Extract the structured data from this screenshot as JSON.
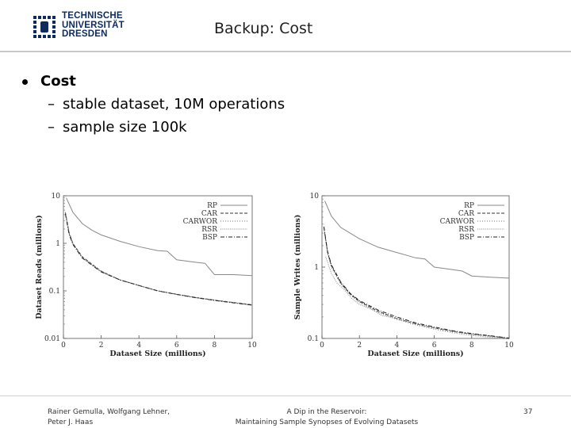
{
  "header": {
    "logo_lines": [
      "TECHNISCHE",
      "UNIVERSITÄT",
      "DRESDEN"
    ],
    "title": "Backup: Cost"
  },
  "content": {
    "bullet": "Cost",
    "subbullets": [
      "stable dataset, 10M operations",
      "sample size 100k"
    ]
  },
  "footer": {
    "authors_line1": "Rainer Gemulla, Wolfgang Lehner,",
    "authors_line2": "Peter J. Haas",
    "talk_line1": "A Dip in the Reservoir:",
    "talk_line2": "Maintaining Sample Synopses of Evolving Datasets",
    "page": "37"
  },
  "chart_data": [
    {
      "type": "line",
      "xlabel": "Dataset Size (millions)",
      "ylabel": "Dataset Reads (millions)",
      "xlim": [
        0,
        10
      ],
      "ylim": [
        0.01,
        10
      ],
      "log_y": true,
      "xticks": [
        "0",
        "2",
        "4",
        "6",
        "8",
        "10"
      ],
      "yticks": [
        "0.01",
        "0.1",
        "1",
        "10"
      ],
      "legend_position": "top-right",
      "series": [
        {
          "name": "RP",
          "style": "solid",
          "x": [
            0.15,
            0.5,
            1,
            1.5,
            2,
            3,
            4,
            5,
            5.5,
            6,
            7,
            7.5,
            8,
            9,
            10
          ],
          "y": [
            9,
            4.5,
            2.6,
            1.9,
            1.5,
            1.1,
            0.85,
            0.7,
            0.68,
            0.45,
            0.4,
            0.38,
            0.22,
            0.22,
            0.21
          ]
        },
        {
          "name": "CAR",
          "style": "dashed",
          "x": [
            0.1,
            0.3,
            0.5,
            1,
            2,
            3,
            4,
            5,
            6,
            7,
            8,
            9,
            10
          ],
          "y": [
            4.5,
            1.7,
            1.0,
            0.52,
            0.26,
            0.17,
            0.13,
            0.1,
            0.085,
            0.073,
            0.064,
            0.057,
            0.051
          ]
        },
        {
          "name": "CARWOR",
          "style": "dotted",
          "x": [
            0.1,
            0.3,
            0.5,
            1,
            2,
            3,
            4,
            5,
            6,
            7,
            8,
            9,
            10
          ],
          "y": [
            4.3,
            1.6,
            0.98,
            0.5,
            0.25,
            0.17,
            0.13,
            0.1,
            0.084,
            0.072,
            0.063,
            0.056,
            0.05
          ]
        },
        {
          "name": "RSR",
          "style": "densely-dotted",
          "x": [
            0.1,
            0.3,
            0.5,
            1,
            2,
            3,
            4,
            5,
            6,
            7,
            8,
            9,
            10
          ],
          "y": [
            4.4,
            1.65,
            1.0,
            0.51,
            0.26,
            0.17,
            0.13,
            0.1,
            0.085,
            0.073,
            0.064,
            0.057,
            0.051
          ]
        },
        {
          "name": "BSP",
          "style": "dash-dot",
          "x": [
            0.1,
            0.3,
            0.5,
            1,
            2,
            3,
            4,
            5,
            6,
            7,
            8,
            9,
            10
          ],
          "y": [
            4.2,
            1.55,
            0.95,
            0.49,
            0.25,
            0.17,
            0.13,
            0.1,
            0.084,
            0.072,
            0.063,
            0.056,
            0.05
          ]
        }
      ]
    },
    {
      "type": "line",
      "xlabel": "Dataset Size (millions)",
      "ylabel": "Sample Writes (millions)",
      "xlim": [
        0,
        10
      ],
      "ylim": [
        0.1,
        10
      ],
      "log_y": true,
      "xticks": [
        "0",
        "2",
        "4",
        "6",
        "8",
        "10"
      ],
      "yticks": [
        "0.1",
        "1",
        "10"
      ],
      "legend_position": "top-right",
      "series": [
        {
          "name": "RP",
          "style": "solid",
          "x": [
            0.15,
            0.5,
            1,
            1.5,
            2,
            3,
            4,
            5,
            5.5,
            6,
            7,
            7.5,
            8,
            9,
            10
          ],
          "y": [
            8.5,
            5.2,
            3.6,
            3.0,
            2.5,
            1.9,
            1.6,
            1.35,
            1.3,
            1.0,
            0.92,
            0.88,
            0.75,
            0.72,
            0.7
          ]
        },
        {
          "name": "CAR",
          "style": "dashed",
          "x": [
            0.1,
            0.3,
            0.5,
            1,
            1.5,
            2,
            3,
            4,
            5,
            6,
            7,
            8,
            9,
            10
          ],
          "y": [
            3.6,
            1.6,
            1.05,
            0.6,
            0.42,
            0.33,
            0.24,
            0.19,
            0.16,
            0.14,
            0.125,
            0.115,
            0.108,
            0.1
          ]
        },
        {
          "name": "CARWOR",
          "style": "dotted",
          "x": [
            0.1,
            0.3,
            0.5,
            1,
            1.5,
            2,
            3,
            4,
            5,
            6,
            7,
            8,
            9,
            10
          ],
          "y": [
            3.5,
            1.55,
            1.0,
            0.58,
            0.41,
            0.32,
            0.23,
            0.185,
            0.155,
            0.135,
            0.12,
            0.11,
            0.104,
            0.098
          ]
        },
        {
          "name": "RSR",
          "style": "densely-dotted",
          "x": [
            0.2,
            0.5,
            0.8,
            1.2,
            1.6,
            2,
            2.6,
            3.2,
            4,
            5,
            6,
            7,
            8,
            9,
            10
          ],
          "y": [
            1.4,
            0.82,
            0.6,
            0.48,
            0.36,
            0.3,
            0.26,
            0.21,
            0.19,
            0.16,
            0.14,
            0.125,
            0.114,
            0.107,
            0.1
          ]
        },
        {
          "name": "BSP",
          "style": "dash-dot",
          "x": [
            0.1,
            0.3,
            0.5,
            1,
            1.5,
            2,
            3,
            4,
            5,
            6,
            7,
            8,
            9,
            10
          ],
          "y": [
            3.7,
            1.65,
            1.08,
            0.62,
            0.43,
            0.34,
            0.25,
            0.2,
            0.165,
            0.145,
            0.128,
            0.117,
            0.109,
            0.101
          ]
        }
      ]
    }
  ]
}
